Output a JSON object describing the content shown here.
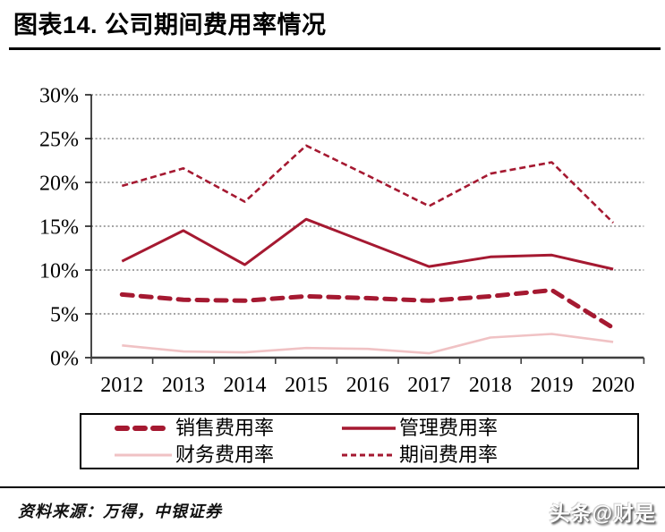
{
  "figure": {
    "title": "图表14. 公司期间费用率情况",
    "source": "资料来源：万得，中银证券",
    "watermark": "头条@财是"
  },
  "colors": {
    "dark_red": "#A51931",
    "light_pink": "#F0C2C4",
    "gridline": "#6e6e6e",
    "axis": "#3f3f3f",
    "text": "#000000"
  },
  "chart_data": {
    "type": "line",
    "title": "",
    "xlabel": "",
    "ylabel": "",
    "categories": [
      "2012",
      "2013",
      "2014",
      "2015",
      "2016",
      "2017",
      "2018",
      "2019",
      "2020"
    ],
    "series": [
      {
        "name": "销售费用率",
        "style": "dash-bold",
        "color": "#A51931",
        "values": [
          7.2,
          6.6,
          6.5,
          7.0,
          6.8,
          6.5,
          7.0,
          7.7,
          3.4
        ]
      },
      {
        "name": "管理费用率",
        "style": "solid-medium",
        "color": "#A51931",
        "values": [
          11.0,
          14.5,
          10.6,
          15.8,
          13.1,
          10.4,
          11.5,
          11.7,
          10.1
        ]
      },
      {
        "name": "财务费用率",
        "style": "solid-light",
        "color": "#F0C2C4",
        "values": [
          1.4,
          0.7,
          0.6,
          1.1,
          1.0,
          0.5,
          2.3,
          2.7,
          1.8
        ]
      },
      {
        "name": "期间费用率",
        "style": "dash-thin",
        "color": "#A51931",
        "values": [
          19.6,
          21.6,
          17.8,
          24.2,
          20.8,
          17.3,
          21.0,
          22.3,
          15.4
        ]
      }
    ],
    "ylim": [
      0,
      30
    ],
    "ytick_step": 5,
    "ytick_labels": [
      "0%",
      "5%",
      "10%",
      "15%",
      "20%",
      "25%",
      "30%"
    ],
    "grid": "horizontal-dotted",
    "legend_position": "bottom-boxed"
  },
  "legend": {
    "items": [
      {
        "label": "销售费用率"
      },
      {
        "label": "管理费用率"
      },
      {
        "label": "财务费用率"
      },
      {
        "label": "期间费用率"
      }
    ]
  }
}
